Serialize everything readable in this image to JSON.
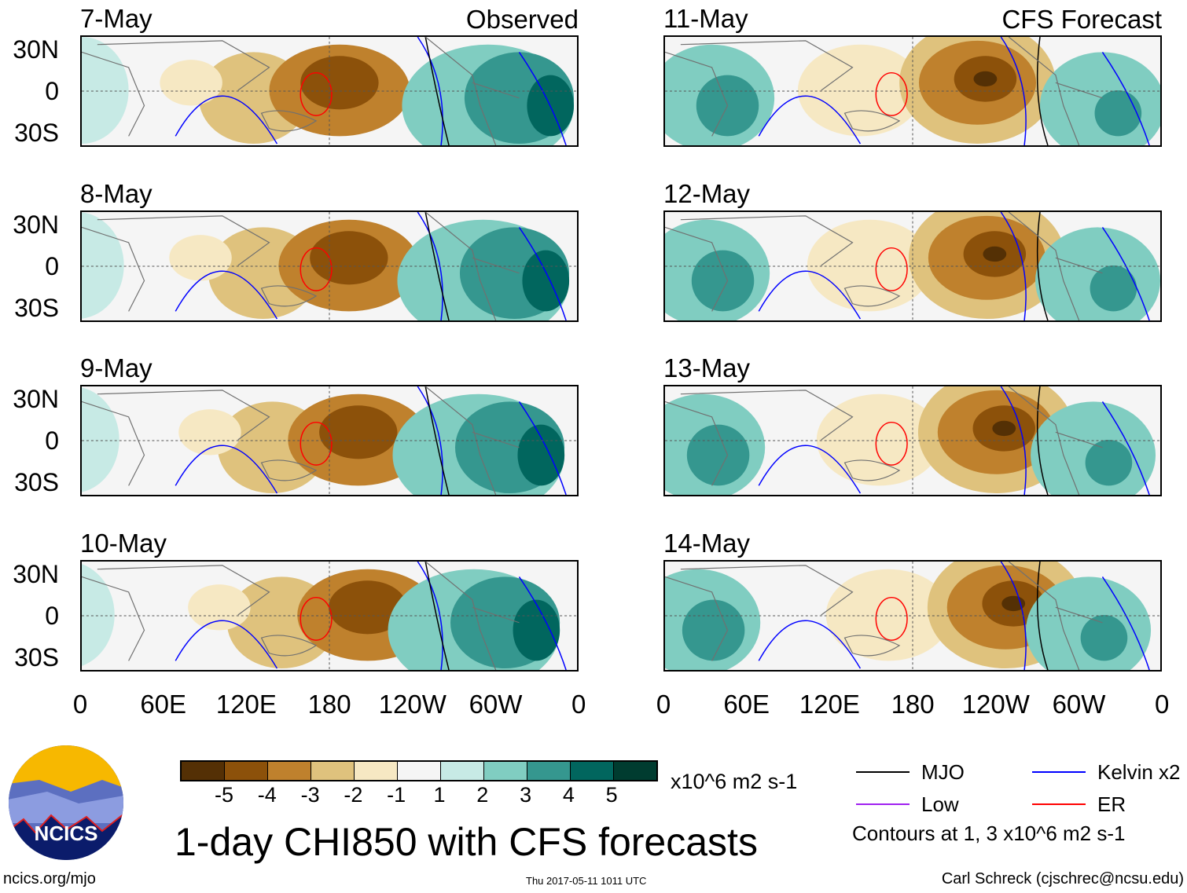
{
  "columns": [
    {
      "type_label": "Observed",
      "dates": [
        "7-May",
        "8-May",
        "9-May",
        "10-May"
      ]
    },
    {
      "type_label": "CFS Forecast",
      "dates": [
        "11-May",
        "12-May",
        "13-May",
        "14-May"
      ]
    }
  ],
  "y_ticks": [
    "30N",
    "0",
    "30S"
  ],
  "x_ticks": [
    "0",
    "60E",
    "120E",
    "180",
    "120W",
    "60W",
    "0"
  ],
  "colorbar": {
    "colors": [
      "#543005",
      "#8c510a",
      "#bf812d",
      "#dfc27d",
      "#f6e8c3",
      "#f5f5f5",
      "#c7eae5",
      "#80cdc1",
      "#35978f",
      "#01665e",
      "#003c30"
    ],
    "labels": [
      "-5",
      "-4",
      "-3",
      "-2",
      "-1",
      "1",
      "2",
      "3",
      "4",
      "5"
    ],
    "units": "x10^6 m2 s-1"
  },
  "title": "1-day CHI850 with CFS forecasts",
  "legend": [
    {
      "label": "MJO",
      "color": "#000000"
    },
    {
      "label": "Kelvin x2",
      "color": "#0000ff"
    },
    {
      "label": "Low",
      "color": "#a020f0"
    },
    {
      "label": "ER",
      "color": "#ff0000"
    }
  ],
  "contours_note": "Contours at 1, 3 x10^6 m2 s-1",
  "logo": {
    "text": "NCICS"
  },
  "footer": {
    "left": "ncics.org/mjo",
    "center": "Thu 2017-05-11 1011 UTC",
    "right": "Carl Schreck (cjschrec@ncsu.edu)"
  }
}
